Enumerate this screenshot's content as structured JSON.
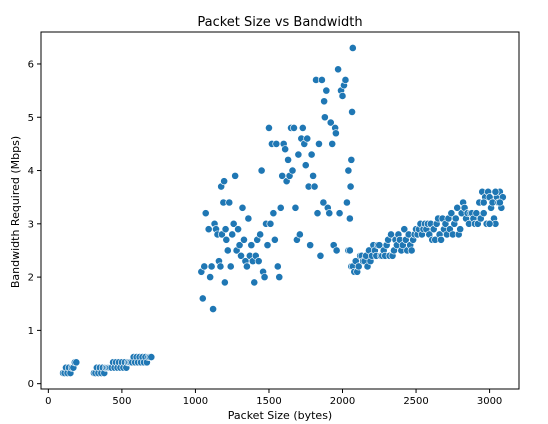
{
  "chart_data": {
    "type": "scatter",
    "title": "Packet Size vs Bandwidth",
    "xlabel": "Packet Size (bytes)",
    "ylabel": "Bandwidth Required (Mbps)",
    "xlim": [
      -50,
      3200
    ],
    "ylim": [
      -0.1,
      6.6
    ],
    "xticks": [
      0,
      500,
      1000,
      1500,
      2000,
      2500,
      3000
    ],
    "yticks": [
      0,
      1,
      2,
      3,
      4,
      5,
      6
    ],
    "grid": false,
    "marker_color": "#1f77b4",
    "marker_edge": "#ffffff",
    "points": [
      [
        100,
        0.2
      ],
      [
        110,
        0.2
      ],
      [
        120,
        0.3
      ],
      [
        130,
        0.2
      ],
      [
        140,
        0.3
      ],
      [
        150,
        0.2
      ],
      [
        160,
        0.3
      ],
      [
        170,
        0.3
      ],
      [
        180,
        0.4
      ],
      [
        190,
        0.4
      ],
      [
        310,
        0.2
      ],
      [
        320,
        0.2
      ],
      [
        330,
        0.3
      ],
      [
        340,
        0.2
      ],
      [
        350,
        0.3
      ],
      [
        360,
        0.2
      ],
      [
        370,
        0.3
      ],
      [
        380,
        0.2
      ],
      [
        390,
        0.3
      ],
      [
        400,
        0.3
      ],
      [
        410,
        0.3
      ],
      [
        420,
        0.3
      ],
      [
        430,
        0.3
      ],
      [
        440,
        0.4
      ],
      [
        450,
        0.3
      ],
      [
        460,
        0.4
      ],
      [
        470,
        0.3
      ],
      [
        480,
        0.4
      ],
      [
        490,
        0.3
      ],
      [
        500,
        0.4
      ],
      [
        510,
        0.3
      ],
      [
        520,
        0.4
      ],
      [
        530,
        0.3
      ],
      [
        540,
        0.4
      ],
      [
        550,
        0.4
      ],
      [
        560,
        0.4
      ],
      [
        570,
        0.4
      ],
      [
        580,
        0.5
      ],
      [
        590,
        0.4
      ],
      [
        600,
        0.5
      ],
      [
        610,
        0.4
      ],
      [
        620,
        0.5
      ],
      [
        630,
        0.4
      ],
      [
        640,
        0.5
      ],
      [
        650,
        0.4
      ],
      [
        660,
        0.5
      ],
      [
        670,
        0.4
      ],
      [
        680,
        0.5
      ],
      [
        690,
        0.5
      ],
      [
        700,
        0.5
      ],
      [
        1040,
        2.1
      ],
      [
        1050,
        1.6
      ],
      [
        1060,
        2.2
      ],
      [
        1070,
        3.2
      ],
      [
        1090,
        2.9
      ],
      [
        1100,
        2.0
      ],
      [
        1110,
        2.2
      ],
      [
        1120,
        1.4
      ],
      [
        1130,
        3.0
      ],
      [
        1140,
        2.9
      ],
      [
        1150,
        2.8
      ],
      [
        1160,
        2.3
      ],
      [
        1170,
        2.2
      ],
      [
        1175,
        3.7
      ],
      [
        1180,
        2.8
      ],
      [
        1190,
        3.4
      ],
      [
        1195,
        3.8
      ],
      [
        1200,
        1.9
      ],
      [
        1205,
        2.9
      ],
      [
        1210,
        2.7
      ],
      [
        1220,
        2.5
      ],
      [
        1230,
        3.4
      ],
      [
        1240,
        2.2
      ],
      [
        1250,
        2.8
      ],
      [
        1260,
        3.0
      ],
      [
        1270,
        3.9
      ],
      [
        1280,
        2.5
      ],
      [
        1290,
        2.9
      ],
      [
        1300,
        2.6
      ],
      [
        1310,
        2.4
      ],
      [
        1320,
        3.3
      ],
      [
        1330,
        2.7
      ],
      [
        1340,
        2.3
      ],
      [
        1350,
        2.2
      ],
      [
        1360,
        3.1
      ],
      [
        1370,
        2.4
      ],
      [
        1380,
        2.6
      ],
      [
        1390,
        2.3
      ],
      [
        1400,
        1.9
      ],
      [
        1410,
        2.4
      ],
      [
        1420,
        2.7
      ],
      [
        1430,
        2.3
      ],
      [
        1440,
        2.8
      ],
      [
        1450,
        4.0
      ],
      [
        1460,
        2.1
      ],
      [
        1470,
        2.0
      ],
      [
        1480,
        3.0
      ],
      [
        1490,
        2.6
      ],
      [
        1500,
        4.8
      ],
      [
        1510,
        3.0
      ],
      [
        1520,
        4.5
      ],
      [
        1530,
        3.2
      ],
      [
        1540,
        2.7
      ],
      [
        1550,
        4.5
      ],
      [
        1560,
        2.2
      ],
      [
        1570,
        2.0
      ],
      [
        1580,
        3.3
      ],
      [
        1590,
        3.9
      ],
      [
        1600,
        4.5
      ],
      [
        1610,
        4.4
      ],
      [
        1620,
        3.8
      ],
      [
        1630,
        4.2
      ],
      [
        1640,
        3.9
      ],
      [
        1650,
        4.8
      ],
      [
        1660,
        4.0
      ],
      [
        1670,
        4.8
      ],
      [
        1680,
        3.3
      ],
      [
        1690,
        2.7
      ],
      [
        1700,
        4.3
      ],
      [
        1710,
        2.8
      ],
      [
        1720,
        4.6
      ],
      [
        1730,
        4.8
      ],
      [
        1740,
        4.5
      ],
      [
        1750,
        4.1
      ],
      [
        1760,
        4.6
      ],
      [
        1770,
        3.7
      ],
      [
        1780,
        2.6
      ],
      [
        1790,
        4.3
      ],
      [
        1800,
        3.9
      ],
      [
        1810,
        3.7
      ],
      [
        1820,
        5.7
      ],
      [
        1830,
        3.2
      ],
      [
        1840,
        4.5
      ],
      [
        1850,
        2.4
      ],
      [
        1860,
        5.7
      ],
      [
        1870,
        3.4
      ],
      [
        1875,
        5.3
      ],
      [
        1880,
        5.0
      ],
      [
        1890,
        5.5
      ],
      [
        1900,
        3.3
      ],
      [
        1910,
        3.2
      ],
      [
        1920,
        4.9
      ],
      [
        1930,
        4.5
      ],
      [
        1940,
        2.6
      ],
      [
        1950,
        4.8
      ],
      [
        1955,
        4.7
      ],
      [
        1960,
        2.5
      ],
      [
        1970,
        5.9
      ],
      [
        1980,
        3.2
      ],
      [
        1990,
        5.5
      ],
      [
        2000,
        5.4
      ],
      [
        2010,
        5.6
      ],
      [
        2020,
        5.7
      ],
      [
        2030,
        3.4
      ],
      [
        2040,
        4.0
      ],
      [
        2050,
        3.1
      ],
      [
        2055,
        3.7
      ],
      [
        2060,
        4.2
      ],
      [
        2065,
        5.1
      ],
      [
        2070,
        6.3
      ],
      [
        2040,
        2.5
      ],
      [
        2050,
        2.5
      ],
      [
        2060,
        2.2
      ],
      [
        2070,
        2.2
      ],
      [
        2080,
        2.1
      ],
      [
        2090,
        2.3
      ],
      [
        2100,
        2.1
      ],
      [
        2110,
        2.2
      ],
      [
        2120,
        2.4
      ],
      [
        2130,
        2.4
      ],
      [
        2140,
        2.3
      ],
      [
        2150,
        2.3
      ],
      [
        2160,
        2.4
      ],
      [
        2170,
        2.2
      ],
      [
        2180,
        2.5
      ],
      [
        2190,
        2.3
      ],
      [
        2200,
        2.4
      ],
      [
        2210,
        2.6
      ],
      [
        2220,
        2.5
      ],
      [
        2230,
        2.4
      ],
      [
        2240,
        2.6
      ],
      [
        2250,
        2.6
      ],
      [
        2260,
        2.4
      ],
      [
        2270,
        2.4
      ],
      [
        2280,
        2.5
      ],
      [
        2290,
        2.4
      ],
      [
        2300,
        2.6
      ],
      [
        2310,
        2.7
      ],
      [
        2320,
        2.4
      ],
      [
        2330,
        2.8
      ],
      [
        2340,
        2.4
      ],
      [
        2350,
        2.5
      ],
      [
        2360,
        2.7
      ],
      [
        2370,
        2.6
      ],
      [
        2380,
        2.8
      ],
      [
        2390,
        2.7
      ],
      [
        2400,
        2.5
      ],
      [
        2410,
        2.6
      ],
      [
        2420,
        2.9
      ],
      [
        2430,
        2.7
      ],
      [
        2440,
        2.5
      ],
      [
        2450,
        2.8
      ],
      [
        2460,
        2.6
      ],
      [
        2470,
        2.5
      ],
      [
        2480,
        2.7
      ],
      [
        2490,
        2.8
      ],
      [
        2500,
        2.9
      ],
      [
        2510,
        2.8
      ],
      [
        2520,
        2.9
      ],
      [
        2530,
        3.0
      ],
      [
        2540,
        2.8
      ],
      [
        2550,
        2.9
      ],
      [
        2560,
        3.0
      ],
      [
        2570,
        2.9
      ],
      [
        2580,
        3.0
      ],
      [
        2590,
        2.8
      ],
      [
        2600,
        3.0
      ],
      [
        2610,
        2.7
      ],
      [
        2620,
        2.9
      ],
      [
        2630,
        2.7
      ],
      [
        2640,
        3.0
      ],
      [
        2650,
        3.1
      ],
      [
        2660,
        2.8
      ],
      [
        2670,
        2.7
      ],
      [
        2680,
        3.1
      ],
      [
        2690,
        2.9
      ],
      [
        2700,
        3.0
      ],
      [
        2710,
        2.8
      ],
      [
        2720,
        3.1
      ],
      [
        2730,
        2.9
      ],
      [
        2740,
        3.2
      ],
      [
        2750,
        2.8
      ],
      [
        2760,
        3.0
      ],
      [
        2770,
        3.1
      ],
      [
        2780,
        3.3
      ],
      [
        2790,
        2.8
      ],
      [
        2800,
        2.9
      ],
      [
        2810,
        3.2
      ],
      [
        2820,
        3.4
      ],
      [
        2830,
        3.3
      ],
      [
        2840,
        3.1
      ],
      [
        2850,
        3.2
      ],
      [
        2860,
        3.0
      ],
      [
        2870,
        3.2
      ],
      [
        2880,
        3.2
      ],
      [
        2890,
        3.1
      ],
      [
        2900,
        3.0
      ],
      [
        2910,
        3.2
      ],
      [
        2920,
        3.0
      ],
      [
        2930,
        3.4
      ],
      [
        2940,
        3.1
      ],
      [
        2950,
        3.6
      ],
      [
        2960,
        3.2
      ],
      [
        2970,
        3.5
      ],
      [
        2980,
        3.0
      ],
      [
        2990,
        3.6
      ],
      [
        3000,
        3.5
      ],
      [
        3010,
        3.3
      ],
      [
        3020,
        3.4
      ],
      [
        3030,
        3.1
      ],
      [
        3040,
        3.0
      ],
      [
        3050,
        3.5
      ],
      [
        3060,
        3.4
      ],
      [
        3070,
        3.6
      ],
      [
        3080,
        3.3
      ],
      [
        3090,
        3.5
      ],
      [
        3000,
        3.0
      ],
      [
        2960,
        3.4
      ],
      [
        3040,
        3.6
      ],
      [
        3070,
        3.4
      ]
    ]
  }
}
